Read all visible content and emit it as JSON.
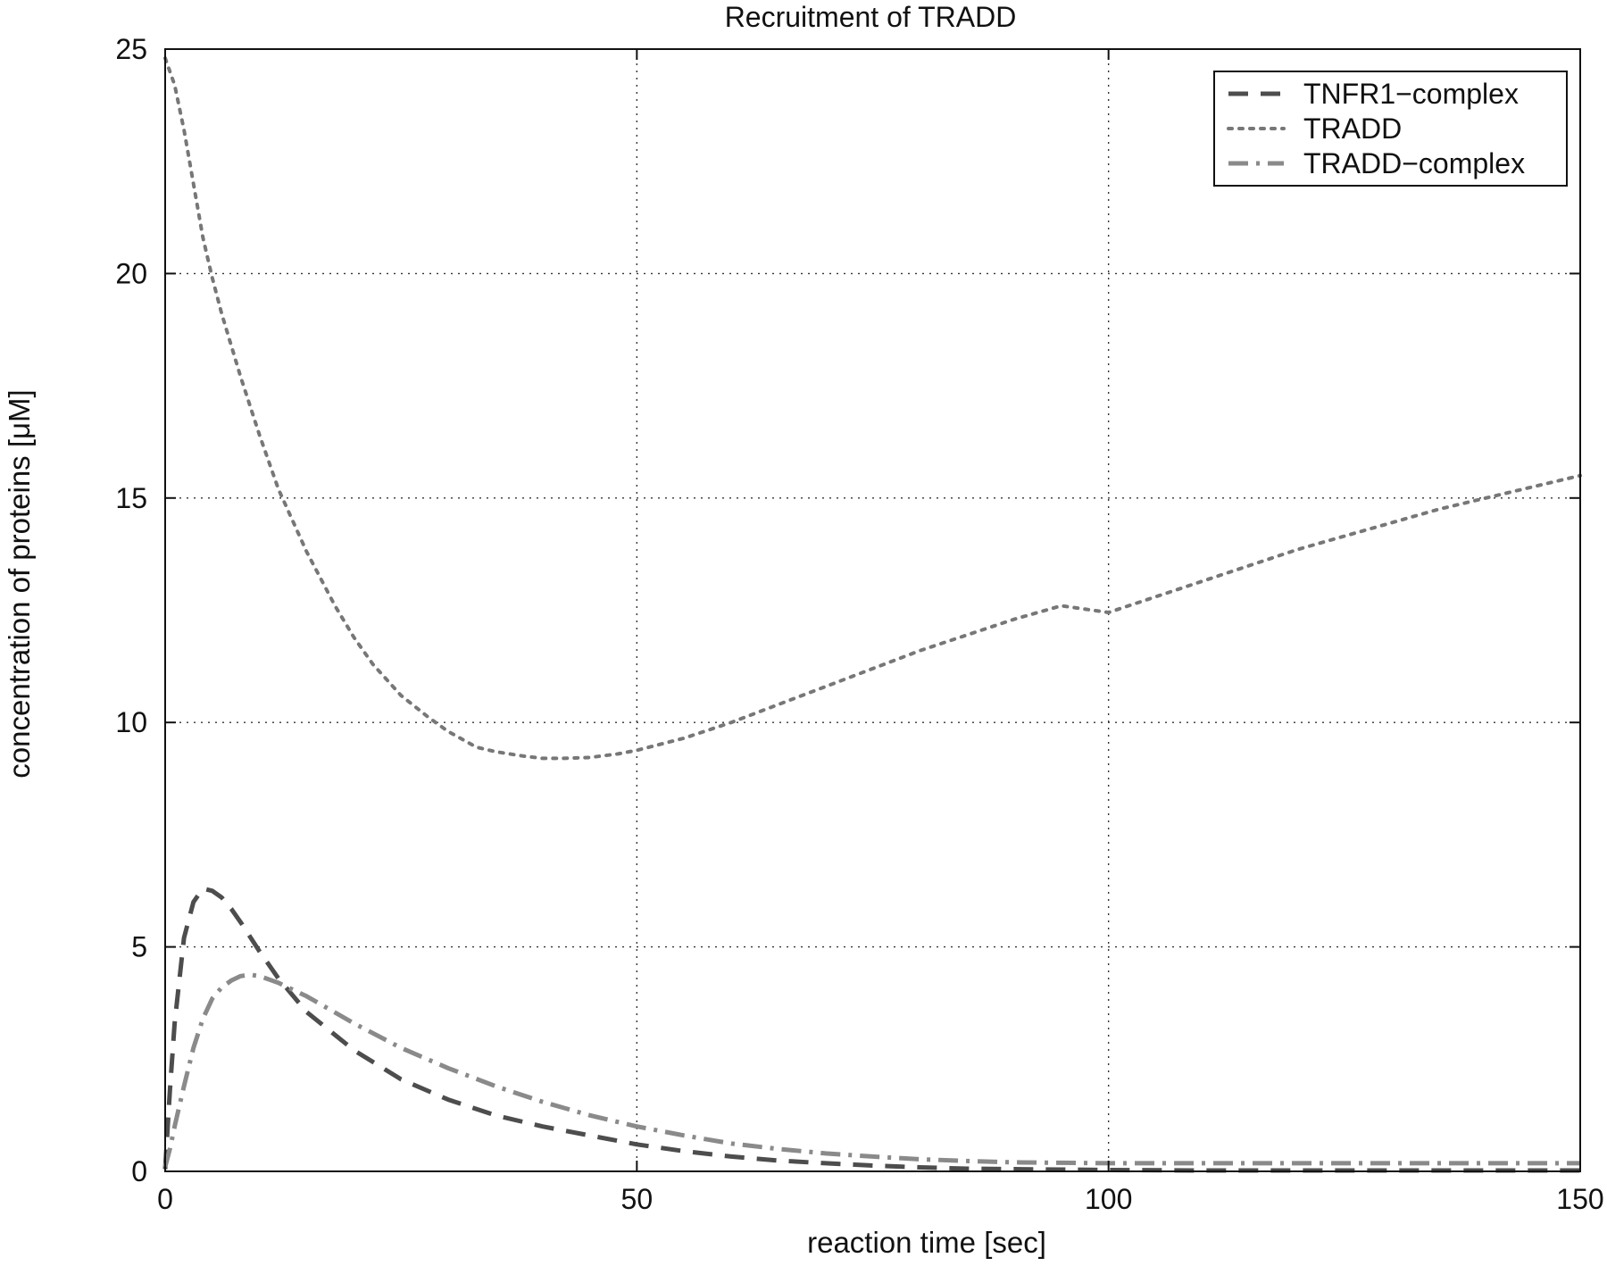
{
  "chart_data": {
    "type": "line",
    "title": "Recruitment of TRADD",
    "xlabel": "reaction time [sec]",
    "ylabel": "concentration of proteins [μM]",
    "xlim": [
      0,
      150
    ],
    "ylim": [
      0,
      25
    ],
    "xticks": [
      "0",
      "50",
      "100",
      "150"
    ],
    "yticks": [
      "0",
      "5",
      "10",
      "15",
      "20",
      "25"
    ],
    "grid": true,
    "legend_position": "top-right",
    "series": [
      {
        "name": "TNFR1−complex",
        "style": "dashed",
        "color": "#4d4d4d",
        "x": [
          0,
          0.5,
          1,
          2,
          3,
          4,
          5,
          6,
          7,
          8,
          10,
          12,
          15,
          20,
          25,
          30,
          35,
          40,
          45,
          50,
          55,
          60,
          65,
          70,
          75,
          80,
          85,
          90,
          95,
          100,
          110,
          120,
          130,
          140,
          150
        ],
        "y": [
          0.05,
          1.8,
          3.3,
          5.2,
          6.0,
          6.3,
          6.25,
          6.1,
          5.85,
          5.55,
          4.9,
          4.3,
          3.55,
          2.7,
          2.05,
          1.6,
          1.25,
          1.0,
          0.8,
          0.6,
          0.45,
          0.33,
          0.24,
          0.18,
          0.13,
          0.09,
          0.06,
          0.05,
          0.04,
          0.03,
          0.02,
          0.02,
          0.02,
          0.02,
          0.02
        ]
      },
      {
        "name": "TRADD",
        "style": "dotted",
        "color": "#777777",
        "x": [
          0,
          1,
          2,
          3,
          4,
          5,
          6,
          8,
          10,
          12,
          15,
          18,
          20,
          22,
          25,
          28,
          30,
          33,
          35,
          38,
          40,
          42,
          45,
          48,
          50,
          55,
          60,
          65,
          70,
          75,
          80,
          85,
          90,
          95,
          100,
          105,
          110,
          115,
          120,
          125,
          130,
          135,
          140,
          145,
          150
        ],
        "y": [
          24.8,
          24.2,
          23.2,
          22.0,
          20.8,
          19.9,
          19.1,
          17.7,
          16.4,
          15.2,
          13.8,
          12.6,
          11.9,
          11.3,
          10.6,
          10.1,
          9.8,
          9.45,
          9.35,
          9.25,
          9.2,
          9.2,
          9.22,
          9.3,
          9.38,
          9.65,
          10.0,
          10.4,
          10.8,
          11.2,
          11.6,
          11.95,
          12.3,
          12.6,
          12.45,
          12.8,
          13.15,
          13.5,
          13.85,
          14.15,
          14.45,
          14.75,
          15.0,
          15.25,
          15.5
        ]
      },
      {
        "name": "TRADD−complex",
        "style": "dash-dot",
        "color": "#8a8a8a",
        "x": [
          0,
          0.5,
          1,
          2,
          3,
          4,
          5,
          6,
          7,
          8,
          9,
          10,
          12,
          15,
          20,
          25,
          30,
          35,
          40,
          45,
          50,
          55,
          60,
          65,
          70,
          75,
          80,
          85,
          90,
          95,
          100,
          110,
          120,
          130,
          140,
          150
        ],
        "y": [
          0.1,
          0.5,
          1.0,
          1.9,
          2.75,
          3.4,
          3.85,
          4.1,
          4.25,
          4.35,
          4.38,
          4.35,
          4.2,
          3.9,
          3.3,
          2.75,
          2.3,
          1.9,
          1.55,
          1.25,
          1.0,
          0.8,
          0.62,
          0.5,
          0.4,
          0.33,
          0.27,
          0.23,
          0.2,
          0.19,
          0.18,
          0.18,
          0.18,
          0.18,
          0.18,
          0.18
        ]
      }
    ]
  }
}
